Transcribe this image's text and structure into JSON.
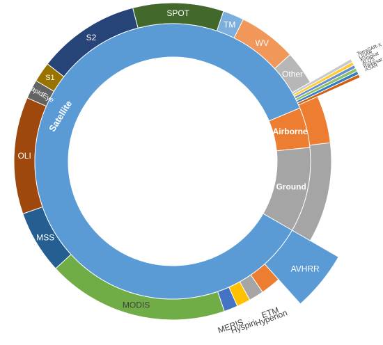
{
  "chart_data": {
    "type": "sunburst",
    "title": "",
    "inner_ring": [
      {
        "name": "Satellite",
        "value": 81.5,
        "color": "#5b9bd5"
      },
      {
        "name": "Airborne",
        "value": 4.5,
        "color": "#ed7d31"
      },
      {
        "name": "Ground",
        "value": 9.5,
        "color": "#a5a5a5"
      }
    ],
    "outer_ring": [
      {
        "name": "AVHRR",
        "value": 4.7,
        "color": "#5b9bd5"
      },
      {
        "name": "ETM",
        "value": 1.9,
        "color": "#ed7d31"
      },
      {
        "name": "Hyperion",
        "value": 1.4,
        "color": "#a5a5a5"
      },
      {
        "name": "Hyspiri",
        "value": 1.3,
        "color": "#ffc000"
      },
      {
        "name": "MERIS",
        "value": 1.3,
        "color": "#4472c4"
      },
      {
        "name": "MODIS",
        "value": 17.2,
        "color": "#70ad47"
      },
      {
        "name": "MSS",
        "value": 6.0,
        "color": "#255e91"
      },
      {
        "name": "OLI",
        "value": 11.1,
        "color": "#9e480e"
      },
      {
        "name": "RapidEye",
        "value": 1.8,
        "color": "#636363"
      },
      {
        "name": "S1",
        "value": 1.9,
        "color": "#997300"
      },
      {
        "name": "S2",
        "value": 9.7,
        "color": "#264478"
      },
      {
        "name": "SPOT",
        "value": 8.6,
        "color": "#43682b"
      },
      {
        "name": "TM",
        "value": 2.0,
        "color": "#7cafdd"
      },
      {
        "name": "WV",
        "value": 5.5,
        "color": "#f1975a"
      },
      {
        "name": "Other",
        "value": 3.2,
        "color": "#b7b7b7"
      },
      {
        "name": "TerraSAR-X",
        "value": 0.25,
        "color": "#c9c9c9"
      },
      {
        "name": "LIDAR",
        "value": 0.25,
        "color": "#ffcd33"
      },
      {
        "name": "Kompsat",
        "value": 0.25,
        "color": "#698ed0"
      },
      {
        "name": "ALOS",
        "value": 0.25,
        "color": "#8cc168"
      },
      {
        "name": "Radarsat",
        "value": 0.25,
        "color": "#327dc2"
      },
      {
        "name": "ASAR",
        "value": 0.25,
        "color": "#d26012"
      },
      {
        "name": "",
        "value": 4.5,
        "color": "#ed7d31"
      },
      {
        "name": "",
        "value": 9.5,
        "color": "#a5a5a5"
      }
    ],
    "text_color_light": "#ffffff",
    "text_color_dark": "#404040"
  }
}
